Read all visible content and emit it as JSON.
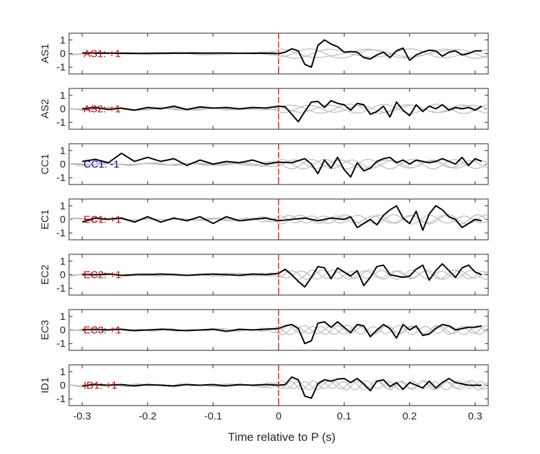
{
  "chart_data": {
    "type": "line",
    "xlabel": "Time relative to P (s)",
    "xlim": [
      -0.32,
      0.32
    ],
    "ylim": [
      -1.5,
      1.5
    ],
    "x_ticks": [
      -0.3,
      -0.2,
      -0.1,
      0,
      0.1,
      0.2,
      0.3
    ],
    "x_tick_labels": [
      "-0.3",
      "-0.2",
      "-0.1",
      "0",
      "0.1",
      "0.2",
      "0.3"
    ],
    "y_ticks": [
      1,
      0,
      -1
    ],
    "y_tick_labels": [
      "1",
      "0",
      "-1"
    ],
    "marker_time": 0,
    "colors": {
      "main": "#000000",
      "background": "#bfbfbf",
      "marker": "#ff0000",
      "positive_label": "#c00000",
      "negative_label": "#0000a0",
      "axes": "#262626"
    },
    "panels": [
      {
        "station": "AS1",
        "annotation": "AS1: +1",
        "polarity": "+1",
        "series": [
          {
            "x": [
              -0.3,
              -0.27,
              -0.24,
              -0.21,
              -0.18,
              -0.15,
              -0.12,
              -0.09,
              -0.06,
              -0.03,
              0.0,
              0.01,
              0.02,
              0.03,
              0.04,
              0.05,
              0.06,
              0.07,
              0.08,
              0.09,
              0.1,
              0.11,
              0.12,
              0.13,
              0.14,
              0.15,
              0.16,
              0.17,
              0.18,
              0.19,
              0.2,
              0.21,
              0.22,
              0.23,
              0.24,
              0.25,
              0.26,
              0.27,
              0.28,
              0.29,
              0.3,
              0.31
            ],
            "y": [
              0.05,
              0.02,
              0.03,
              0.01,
              0.03,
              0.02,
              0.03,
              0.04,
              0.02,
              0.03,
              0.0,
              0.1,
              0.35,
              0.2,
              -0.8,
              -1.0,
              0.6,
              1.0,
              0.7,
              0.5,
              0.1,
              0.15,
              0.1,
              -0.3,
              -0.4,
              -0.1,
              0.1,
              -0.3,
              0.2,
              0.4,
              -0.5,
              -0.1,
              0.1,
              0.25,
              0.2,
              -0.2,
              0.1,
              0.2,
              -0.1,
              0.0,
              0.2,
              0.2
            ]
          }
        ]
      },
      {
        "station": "AS2",
        "annotation": "AS2: +1",
        "polarity": "+1",
        "series": [
          {
            "x": [
              -0.3,
              -0.28,
              -0.26,
              -0.24,
              -0.22,
              -0.2,
              -0.18,
              -0.16,
              -0.14,
              -0.12,
              -0.1,
              -0.08,
              -0.06,
              -0.04,
              -0.02,
              0.0,
              0.01,
              0.02,
              0.03,
              0.04,
              0.05,
              0.06,
              0.07,
              0.08,
              0.09,
              0.1,
              0.11,
              0.12,
              0.13,
              0.14,
              0.15,
              0.16,
              0.17,
              0.18,
              0.19,
              0.2,
              0.21,
              0.22,
              0.23,
              0.24,
              0.25,
              0.26,
              0.27,
              0.28,
              0.29,
              0.3,
              0.31
            ],
            "y": [
              0.0,
              0.1,
              -0.05,
              0.05,
              -0.1,
              0.1,
              0.0,
              0.2,
              -0.05,
              0.15,
              0.05,
              0.1,
              0.0,
              0.1,
              0.05,
              0.2,
              0.15,
              -0.4,
              -0.95,
              -0.2,
              0.5,
              0.55,
              0.1,
              0.6,
              0.4,
              0.3,
              -0.1,
              0.4,
              0.3,
              -0.4,
              -0.2,
              0.2,
              -0.6,
              0.5,
              -0.1,
              -0.5,
              0.3,
              -0.2,
              0.2,
              0.0,
              0.3,
              -0.1,
              0.1,
              0.0,
              0.1,
              -0.1,
              0.2
            ]
          }
        ]
      },
      {
        "station": "CC1",
        "annotation": "CC1: -1",
        "polarity": "-1",
        "series": [
          {
            "x": [
              -0.3,
              -0.28,
              -0.26,
              -0.24,
              -0.22,
              -0.2,
              -0.18,
              -0.16,
              -0.14,
              -0.12,
              -0.1,
              -0.08,
              -0.06,
              -0.04,
              -0.02,
              0.0,
              0.02,
              0.04,
              0.05,
              0.06,
              0.07,
              0.08,
              0.09,
              0.1,
              0.11,
              0.12,
              0.13,
              0.14,
              0.15,
              0.16,
              0.17,
              0.18,
              0.19,
              0.2,
              0.21,
              0.22,
              0.23,
              0.24,
              0.25,
              0.26,
              0.27,
              0.28,
              0.29,
              0.3,
              0.31
            ],
            "y": [
              0.2,
              0.35,
              0.1,
              0.8,
              0.2,
              0.5,
              0.2,
              0.4,
              -0.1,
              0.3,
              0.0,
              0.2,
              0.1,
              0.3,
              0.0,
              0.15,
              0.1,
              0.4,
              0.0,
              -0.7,
              0.3,
              -0.3,
              0.5,
              -0.4,
              -0.95,
              0.1,
              -0.5,
              -0.3,
              0.2,
              0.4,
              0.5,
              0.1,
              0.3,
              0.0,
              0.3,
              0.2,
              0.1,
              0.2,
              0.4,
              0.2,
              0.0,
              0.5,
              -0.1,
              0.4,
              0.2
            ]
          }
        ]
      },
      {
        "station": "EC1",
        "annotation": "EC1: +1",
        "polarity": "+1",
        "series": [
          {
            "x": [
              -0.3,
              -0.28,
              -0.26,
              -0.24,
              -0.22,
              -0.2,
              -0.18,
              -0.16,
              -0.14,
              -0.12,
              -0.1,
              -0.08,
              -0.06,
              -0.04,
              -0.02,
              0.0,
              0.02,
              0.04,
              0.06,
              0.08,
              0.1,
              0.11,
              0.12,
              0.13,
              0.14,
              0.15,
              0.16,
              0.17,
              0.18,
              0.19,
              0.2,
              0.21,
              0.22,
              0.23,
              0.24,
              0.25,
              0.26,
              0.27,
              0.28,
              0.29,
              0.3,
              0.31
            ],
            "y": [
              -0.2,
              0.1,
              0.0,
              0.1,
              -0.2,
              0.2,
              -0.2,
              0.1,
              -0.1,
              0.2,
              -0.3,
              0.2,
              -0.1,
              0.0,
              0.1,
              -0.1,
              0.0,
              0.1,
              -0.1,
              0.1,
              0.0,
              0.2,
              -0.6,
              -0.3,
              0.0,
              -0.4,
              0.3,
              0.7,
              1.0,
              0.1,
              -0.3,
              0.6,
              -0.8,
              0.4,
              1.0,
              0.7,
              0.2,
              0.0,
              -0.6,
              -0.3,
              0.0,
              -0.1
            ]
          }
        ]
      },
      {
        "station": "EC2",
        "annotation": "EC2: +1",
        "polarity": "+1",
        "series": [
          {
            "x": [
              -0.3,
              -0.28,
              -0.26,
              -0.24,
              -0.22,
              -0.2,
              -0.18,
              -0.16,
              -0.14,
              -0.12,
              -0.1,
              -0.08,
              -0.06,
              -0.04,
              -0.02,
              0.0,
              0.01,
              0.02,
              0.03,
              0.04,
              0.05,
              0.06,
              0.07,
              0.08,
              0.09,
              0.1,
              0.11,
              0.12,
              0.13,
              0.14,
              0.15,
              0.16,
              0.17,
              0.18,
              0.19,
              0.2,
              0.21,
              0.22,
              0.23,
              0.24,
              0.25,
              0.26,
              0.27,
              0.28,
              0.29,
              0.3,
              0.31
            ],
            "y": [
              0.0,
              0.0,
              0.05,
              -0.05,
              0.0,
              0.0,
              0.05,
              0.0,
              -0.05,
              0.0,
              0.05,
              0.0,
              -0.05,
              0.05,
              0.0,
              0.1,
              0.4,
              0.0,
              -0.5,
              -0.9,
              -0.2,
              0.6,
              0.5,
              -0.3,
              0.5,
              0.2,
              -0.1,
              0.3,
              -0.8,
              -0.2,
              0.6,
              0.7,
              0.0,
              -0.1,
              -0.2,
              -0.1,
              0.4,
              0.7,
              -0.4,
              0.3,
              0.8,
              0.3,
              -0.2,
              0.5,
              0.7,
              0.2,
              0.0
            ]
          }
        ]
      },
      {
        "station": "EC3",
        "annotation": "EC3: +1",
        "polarity": "+1",
        "series": [
          {
            "x": [
              -0.3,
              -0.28,
              -0.26,
              -0.24,
              -0.22,
              -0.2,
              -0.18,
              -0.16,
              -0.14,
              -0.12,
              -0.1,
              -0.08,
              -0.06,
              -0.04,
              -0.02,
              0.0,
              0.01,
              0.02,
              0.03,
              0.04,
              0.05,
              0.06,
              0.07,
              0.08,
              0.09,
              0.1,
              0.11,
              0.12,
              0.13,
              0.14,
              0.15,
              0.16,
              0.17,
              0.18,
              0.19,
              0.2,
              0.21,
              0.22,
              0.23,
              0.24,
              0.25,
              0.26,
              0.27,
              0.28,
              0.29,
              0.3,
              0.31
            ],
            "y": [
              0.0,
              0.05,
              0.0,
              0.05,
              -0.05,
              0.0,
              0.05,
              0.0,
              -0.05,
              0.0,
              0.05,
              -0.1,
              0.05,
              0.0,
              0.05,
              0.1,
              0.3,
              0.4,
              0.1,
              -1.0,
              -0.8,
              0.5,
              0.6,
              0.2,
              0.6,
              0.2,
              -0.2,
              0.4,
              0.3,
              -0.5,
              0.0,
              0.4,
              0.1,
              -0.6,
              0.4,
              0.0,
              0.3,
              -0.4,
              -0.3,
              0.1,
              0.4,
              0.3,
              0.0,
              0.1,
              0.2,
              0.2,
              0.3
            ]
          }
        ]
      },
      {
        "station": "ID1",
        "annotation": "ID1: +1",
        "polarity": "+1",
        "series": [
          {
            "x": [
              -0.3,
              -0.28,
              -0.26,
              -0.24,
              -0.22,
              -0.2,
              -0.18,
              -0.16,
              -0.14,
              -0.12,
              -0.1,
              -0.08,
              -0.06,
              -0.04,
              -0.02,
              0.0,
              0.01,
              0.02,
              0.03,
              0.04,
              0.05,
              0.06,
              0.07,
              0.08,
              0.09,
              0.1,
              0.11,
              0.12,
              0.13,
              0.14,
              0.15,
              0.16,
              0.17,
              0.18,
              0.19,
              0.2,
              0.21,
              0.22,
              0.23,
              0.24,
              0.25,
              0.26,
              0.27,
              0.28,
              0.29,
              0.3,
              0.31
            ],
            "y": [
              -0.05,
              0.05,
              0.0,
              0.05,
              -0.05,
              0.05,
              0.0,
              -0.05,
              0.05,
              0.0,
              0.05,
              -0.05,
              0.05,
              0.0,
              0.05,
              0.0,
              0.05,
              0.6,
              0.4,
              -0.8,
              -0.95,
              0.1,
              0.4,
              0.3,
              0.45,
              0.5,
              0.2,
              0.5,
              0.1,
              -0.4,
              0.3,
              0.4,
              -0.1,
              0.2,
              -0.3,
              0.2,
              0.0,
              -0.2,
              0.3,
              -0.2,
              0.2,
              0.5,
              0.2,
              0.1,
              0.0,
              0.0,
              0.0
            ]
          }
        ]
      }
    ]
  }
}
